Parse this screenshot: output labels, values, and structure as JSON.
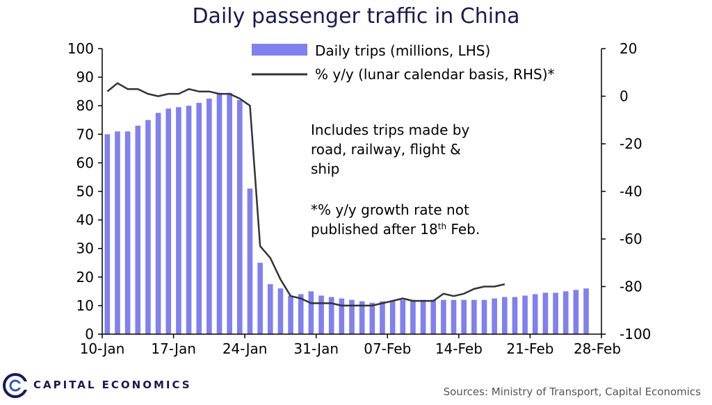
{
  "chart_data": {
    "type": "bar",
    "title": "Daily passenger traffic in China",
    "x_start": "2020-01-10",
    "x_ticks": [
      "10-Jan",
      "17-Jan",
      "24-Jan",
      "31-Jan",
      "07-Feb",
      "14-Feb",
      "21-Feb",
      "28-Feb"
    ],
    "ylim_left": [
      0,
      100
    ],
    "ylim_right": [
      -100,
      20
    ],
    "yticks_left": [
      "0",
      "10",
      "20",
      "30",
      "40",
      "50",
      "60",
      "70",
      "80",
      "90",
      "100"
    ],
    "yticks_right": [
      "-100",
      "-80",
      "-60",
      "-40",
      "-20",
      "0",
      "20"
    ],
    "legend": [
      "Daily trips (millions, LHS)",
      "% y/y (lunar calendar basis, RHS)*"
    ],
    "series": [
      {
        "name": "Daily trips (millions, LHS)",
        "type": "bar",
        "axis": "left",
        "color": "#8080f0",
        "values": [
          70,
          71,
          71,
          73,
          75,
          77.5,
          79,
          79.5,
          80,
          81,
          82.5,
          84.5,
          84.5,
          82,
          51,
          25,
          17.5,
          16,
          13.5,
          14,
          15,
          13.5,
          13,
          12.5,
          12,
          11.5,
          11,
          11.5,
          11.5,
          12,
          12,
          12,
          12,
          12,
          12,
          12,
          12,
          12,
          12.5,
          13,
          13,
          13.5,
          14,
          14.5,
          14.5,
          15,
          15.5,
          16
        ]
      },
      {
        "name": "% y/y (lunar calendar basis, RHS)*",
        "type": "line",
        "axis": "right",
        "color": "#333333",
        "values": [
          2,
          5.5,
          3,
          3,
          1,
          0,
          1,
          1,
          3,
          2,
          2,
          1,
          1,
          -1,
          -4,
          -63,
          -68,
          -77,
          -84,
          -85,
          -87,
          -87,
          -87,
          -88,
          -88,
          -88,
          -88,
          -87,
          -86,
          -85,
          -86,
          -86,
          -86,
          -83,
          -84,
          -83,
          -81,
          -80,
          -80,
          -79
        ]
      }
    ],
    "annotation_lines": [
      "Includes  trips  made by",
      "road,  railway,  flight  &",
      "ship",
      "",
      "*% y/y growth  rate not",
      "published   after 18"
    ],
    "annotation_sup": "th",
    "annotation_tail": "  Feb."
  },
  "footer": {
    "brand": "CAPITAL ECONOMICS",
    "sources": "Sources: Ministry of Transport, Capital Economics"
  }
}
